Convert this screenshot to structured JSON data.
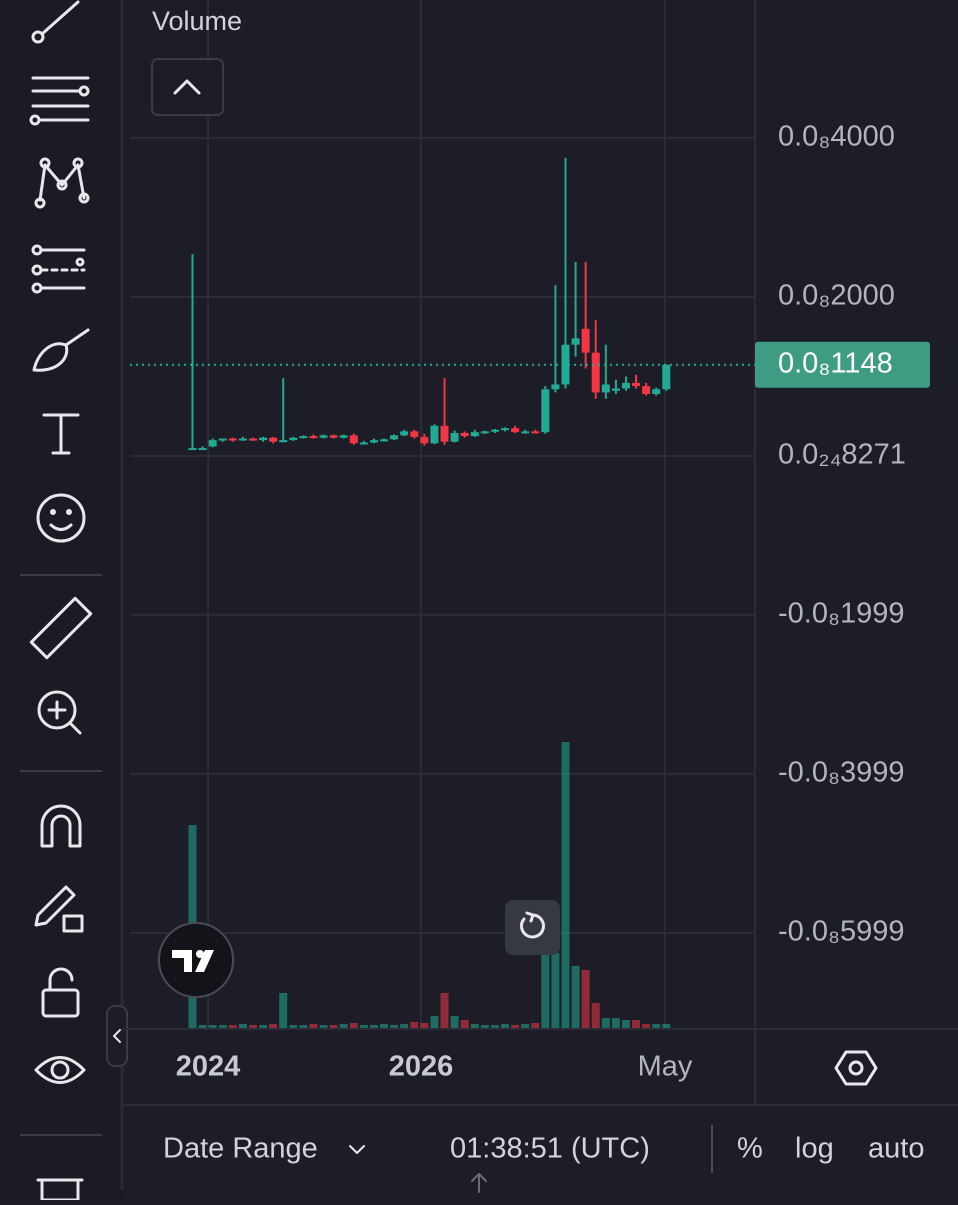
{
  "chart_data": {
    "type": "candlestick",
    "legend": "Volume",
    "open": [
      1e-10,
      1e-10,
      1.2e-10,
      2e-10,
      2.2e-10,
      2e-10,
      2.2e-10,
      2e-10,
      2.3e-10,
      1.8e-10,
      2e-10,
      2.3e-10,
      2.5e-10,
      2.3e-10,
      2.6e-10,
      2.3e-10,
      2.6e-10,
      1.6e-10,
      1.7e-10,
      2e-10,
      2.1e-10,
      2.6e-10,
      3.1e-10,
      2.4e-10,
      1.6e-10,
      3.8e-10,
      1.8e-10,
      2.9e-10,
      2.5e-10,
      3e-10,
      3.1e-10,
      3.3e-10,
      3.5e-10,
      3e-10,
      3.1e-10,
      3e-10,
      8.4e-10,
      9e-10,
      1.4e-09,
      1.6e-09,
      1.3e-09,
      8e-10,
      8.2e-10,
      8.5e-10,
      9.2e-10,
      8.8e-10,
      7.8e-10,
      8.4e-10
    ],
    "high": [
      2.54e-09,
      1.2e-10,
      2.2e-10,
      2.2e-10,
      2.3e-10,
      2.4e-10,
      2.3e-10,
      2.4e-10,
      2.4e-10,
      9.8e-10,
      2.4e-10,
      2.6e-10,
      2.7e-10,
      2.7e-10,
      2.7e-10,
      2.7e-10,
      2.8e-10,
      1.9e-10,
      2.2e-10,
      2.2e-10,
      2.7e-10,
      3.3e-10,
      3.3e-10,
      2.8e-10,
      4e-10,
      9.8e-10,
      3.2e-10,
      3.1e-10,
      3.3e-10,
      3.2e-10,
      3.4e-10,
      3.6e-10,
      3.8e-10,
      3.3e-10,
      3.3e-10,
      8.8e-10,
      2.15e-09,
      3.75e-09,
      2.44e-09,
      2.44e-09,
      1.71e-09,
      1.4e-09,
      9.6e-10,
      1e-09,
      1.02e-09,
      9.2e-10,
      8.6e-10,
      1.148e-09
    ],
    "low": [
      9e-11,
      8e-11,
      1.1e-10,
      1.8e-10,
      1.8e-10,
      1.9e-10,
      1.9e-10,
      1.8e-10,
      1.6e-10,
      1.7e-10,
      1.9e-10,
      2.2e-10,
      2.2e-10,
      2.2e-10,
      2.2e-10,
      2.2e-10,
      1.4e-10,
      1.5e-10,
      1.6e-10,
      1.8e-10,
      2e-10,
      2.5e-10,
      2.2e-10,
      1.3e-10,
      1.5e-10,
      1.4e-10,
      1.7e-10,
      2.3e-10,
      2.4e-10,
      2.8e-10,
      2.9e-10,
      3.1e-10,
      2.9e-10,
      2.8e-10,
      2.9e-10,
      2.8e-10,
      8e-10,
      8.5e-10,
      1.25e-09,
      1.1e-09,
      7.2e-10,
      7.2e-10,
      7.8e-10,
      8.2e-10,
      8.5e-10,
      7.6e-10,
      7.6e-10,
      8.2e-10
    ],
    "close": [
      1e-10,
      1e-10,
      2e-10,
      2.2e-10,
      2e-10,
      2.2e-10,
      2e-10,
      2.3e-10,
      1.8e-10,
      2e-10,
      2.3e-10,
      2.5e-10,
      2.3e-10,
      2.6e-10,
      2.3e-10,
      2.6e-10,
      1.6e-10,
      1.7e-10,
      2e-10,
      2.1e-10,
      2.6e-10,
      3.1e-10,
      2.4e-10,
      1.6e-10,
      3.8e-10,
      1.8e-10,
      2.9e-10,
      2.5e-10,
      3e-10,
      3.1e-10,
      3.3e-10,
      3.5e-10,
      3e-10,
      3.1e-10,
      3e-10,
      8.4e-10,
      9e-10,
      1.4e-09,
      1.48e-09,
      1.3e-09,
      8e-10,
      9e-10,
      8.5e-10,
      9.2e-10,
      8.8e-10,
      7.8e-10,
      8.4e-10,
      1.148e-09
    ],
    "volume": [
      203,
      3,
      3,
      3,
      3,
      4,
      3,
      3,
      4,
      35,
      3,
      3,
      4,
      3,
      3,
      4,
      5,
      3,
      3,
      4,
      3,
      4,
      6,
      5,
      12,
      35,
      12,
      8,
      4,
      3,
      3,
      4,
      3,
      4,
      5,
      75,
      75,
      286,
      62,
      58,
      25,
      10,
      10,
      8,
      8,
      4,
      4,
      4
    ],
    "up_color": "#22ab94",
    "down_color": "#f23645",
    "ylim": [
      -7.195e-09,
      5.736e-09
    ],
    "yticks": [
      {
        "value": 4e-09,
        "label": "0.0₈4000"
      },
      {
        "value": 2e-09,
        "label": "0.0₈2000"
      },
      {
        "value": 8.271e-25,
        "label": "0.0₂₄8271"
      },
      {
        "value": -1.999e-09,
        "label": "-0.0₈1999"
      },
      {
        "value": -3.999e-09,
        "label": "-0.0₈3999"
      },
      {
        "value": -5.999e-09,
        "label": "-0.0₈5999"
      }
    ],
    "last_price": {
      "value": 1.148e-09,
      "label": "0.0₈1148"
    },
    "xlim": [
      -6.2,
      55.8
    ],
    "xticks": [
      {
        "value": 1.54,
        "label": "2024"
      },
      {
        "value": 22.67,
        "label": "2026"
      },
      {
        "value": 46.87,
        "label": "May"
      }
    ],
    "grid": true
  },
  "bottom_bar": {
    "date_range": "Date Range",
    "time": "01:38:51 (UTC)",
    "percent": "%",
    "log": "log",
    "auto": "auto"
  }
}
